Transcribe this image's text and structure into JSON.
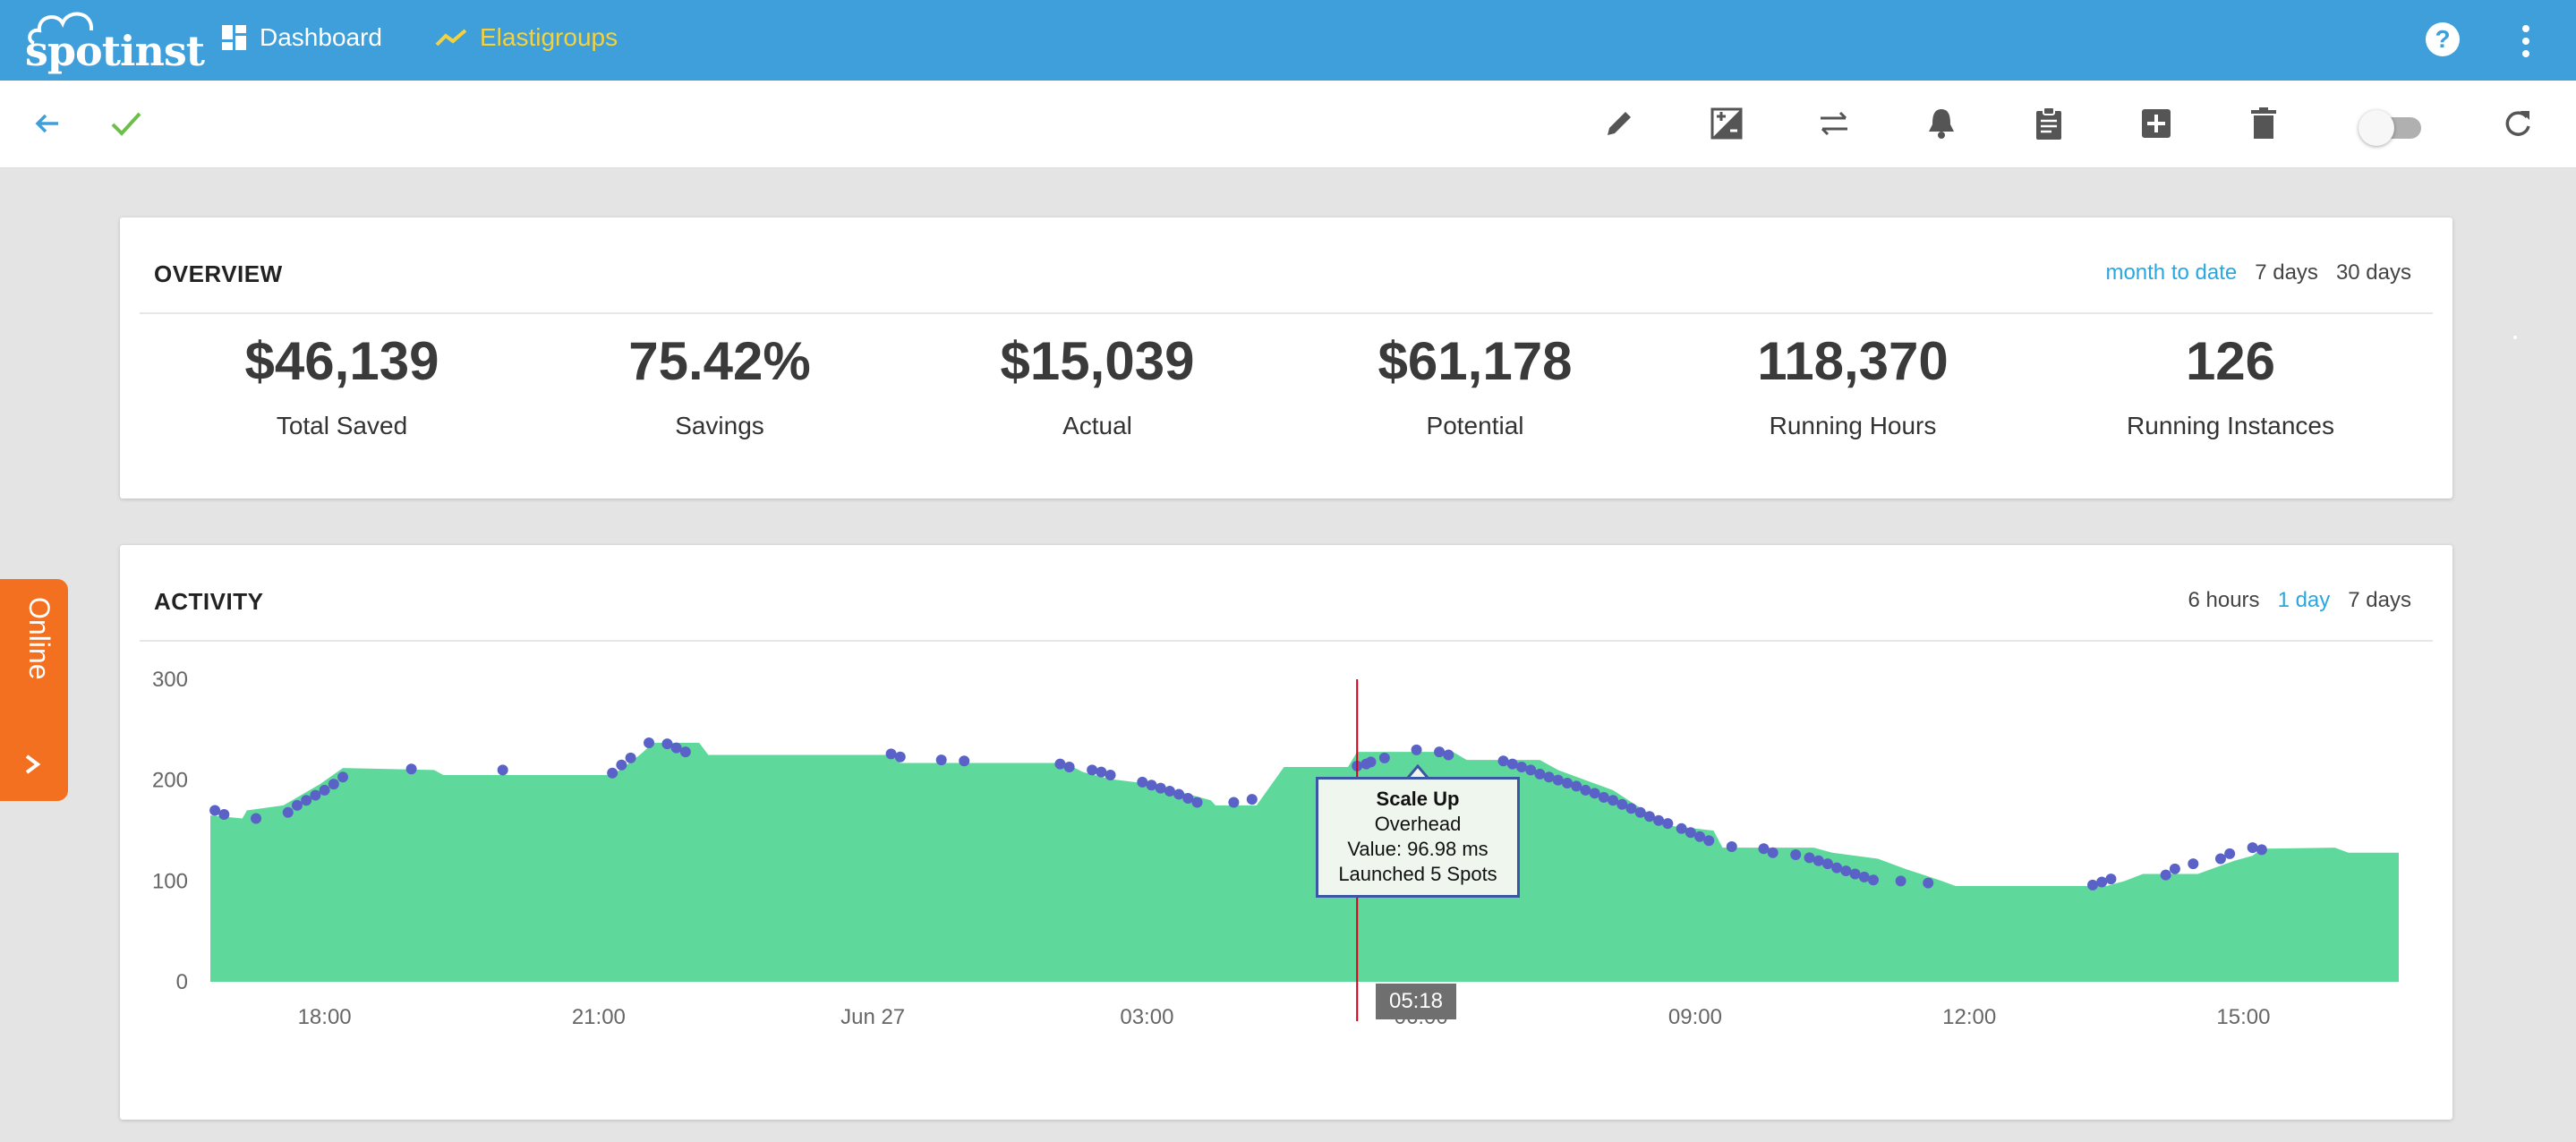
{
  "topbar": {
    "logo_text": "spotinst",
    "nav": [
      {
        "label": "Dashboard",
        "icon": "dashboard-grid-icon",
        "active": false
      },
      {
        "label": "Elastigroups",
        "icon": "trending-line-icon",
        "active": true
      }
    ],
    "help_label": "?"
  },
  "toolbar": {
    "icons": [
      "back-arrow-icon",
      "check-icon",
      "edit-pencil-icon",
      "image-plus-minus-icon",
      "swap-arrows-icon",
      "bell-icon",
      "clipboard-icon",
      "plus-box-icon",
      "trash-icon",
      "toggle-switch",
      "refresh-icon"
    ],
    "toggle_on": false
  },
  "overview": {
    "title": "OVERVIEW",
    "ranges": [
      {
        "label": "month to date",
        "selected": true
      },
      {
        "label": "7 days",
        "selected": false
      },
      {
        "label": "30 days",
        "selected": false
      }
    ],
    "stats": [
      {
        "value": "$46,139",
        "label": "Total Saved"
      },
      {
        "value": "75.42%",
        "label": "Savings"
      },
      {
        "value": "$15,039",
        "label": "Actual"
      },
      {
        "value": "$61,178",
        "label": "Potential"
      },
      {
        "value": "118,370",
        "label": "Running Hours"
      },
      {
        "value": "126",
        "label": "Running Instances"
      }
    ]
  },
  "activity": {
    "title": "ACTIVITY",
    "ranges": [
      {
        "label": "6 hours",
        "selected": false
      },
      {
        "label": "1 day",
        "selected": true
      },
      {
        "label": "7 days",
        "selected": false
      }
    ],
    "tooltip": {
      "title": "Scale Up",
      "line1": "Overhead",
      "line2": "Value: 96.98 ms",
      "line3": "Launched 5 Spots"
    },
    "cursor_time": "05:18"
  },
  "online_tab": {
    "label": "Online"
  },
  "colors": {
    "topbar": "#3e9fdb",
    "nav_active": "#f6d23a",
    "area_fill": "#5fd99b",
    "markers": "#5a62c8",
    "cursor_line": "#d0021b",
    "link_selected": "#29a7de",
    "online_tab": "#f37021"
  },
  "chart_data": {
    "type": "area",
    "ylim": [
      0,
      300
    ],
    "yticks": [
      "0",
      "100",
      "200",
      "300"
    ],
    "xlim": [
      16.75,
      40.7
    ],
    "xticks": [
      {
        "x": 18,
        "label": "18:00"
      },
      {
        "x": 21,
        "label": "21:00"
      },
      {
        "x": 24,
        "label": "Jun 27"
      },
      {
        "x": 27,
        "label": "03:00"
      },
      {
        "x": 30,
        "label": "06:00"
      },
      {
        "x": 33,
        "label": "09:00"
      },
      {
        "x": 36,
        "label": "12:00"
      },
      {
        "x": 39,
        "label": "15:00"
      }
    ],
    "series": [
      {
        "name": "instances",
        "points": [
          [
            16.75,
            165
          ],
          [
            17.1,
            162
          ],
          [
            17.15,
            170
          ],
          [
            17.55,
            175
          ],
          [
            17.95,
            196
          ],
          [
            18.2,
            212
          ],
          [
            19.2,
            210
          ],
          [
            19.3,
            205
          ],
          [
            21.15,
            205
          ],
          [
            21.35,
            218
          ],
          [
            21.45,
            225
          ],
          [
            21.6,
            237
          ],
          [
            22.1,
            237
          ],
          [
            22.2,
            225
          ],
          [
            24.2,
            225
          ],
          [
            24.3,
            217
          ],
          [
            26.1,
            217
          ],
          [
            26.3,
            208
          ],
          [
            26.6,
            201
          ],
          [
            27.05,
            196
          ],
          [
            27.3,
            190
          ],
          [
            27.7,
            180
          ],
          [
            27.75,
            175
          ],
          [
            28.2,
            175
          ],
          [
            28.5,
            213
          ],
          [
            29.2,
            213
          ],
          [
            29.3,
            228
          ],
          [
            30.35,
            228
          ],
          [
            30.5,
            220
          ],
          [
            31.3,
            220
          ],
          [
            31.5,
            210
          ],
          [
            32.1,
            190
          ],
          [
            32.7,
            155
          ],
          [
            33.2,
            150
          ],
          [
            33.3,
            133
          ],
          [
            34.3,
            133
          ],
          [
            34.5,
            128
          ],
          [
            35.0,
            122
          ],
          [
            35.3,
            112
          ],
          [
            35.7,
            100
          ],
          [
            35.85,
            95
          ],
          [
            37.5,
            95
          ],
          [
            37.7,
            100
          ],
          [
            37.9,
            107
          ],
          [
            38.5,
            107
          ],
          [
            38.9,
            120
          ],
          [
            39.1,
            125
          ],
          [
            39.2,
            132
          ],
          [
            40.0,
            133
          ],
          [
            40.15,
            128
          ],
          [
            40.7,
            128
          ]
        ]
      },
      {
        "name": "events",
        "type": "scatter",
        "points": [
          [
            16.8,
            170
          ],
          [
            16.9,
            166
          ],
          [
            17.25,
            162
          ],
          [
            17.6,
            168
          ],
          [
            17.7,
            175
          ],
          [
            17.8,
            180
          ],
          [
            17.9,
            185
          ],
          [
            18.0,
            190
          ],
          [
            18.1,
            196
          ],
          [
            18.2,
            203
          ],
          [
            18.95,
            211
          ],
          [
            19.95,
            210
          ],
          [
            21.15,
            207
          ],
          [
            21.25,
            215
          ],
          [
            21.35,
            222
          ],
          [
            21.55,
            237
          ],
          [
            21.75,
            236
          ],
          [
            21.85,
            232
          ],
          [
            21.95,
            228
          ],
          [
            24.2,
            226
          ],
          [
            24.3,
            223
          ],
          [
            24.75,
            220
          ],
          [
            25.0,
            219
          ],
          [
            26.05,
            216
          ],
          [
            26.15,
            213
          ],
          [
            26.4,
            210
          ],
          [
            26.5,
            208
          ],
          [
            26.6,
            205
          ],
          [
            26.95,
            198
          ],
          [
            27.05,
            195
          ],
          [
            27.15,
            192
          ],
          [
            27.25,
            189
          ],
          [
            27.35,
            186
          ],
          [
            27.45,
            182
          ],
          [
            27.55,
            178
          ],
          [
            27.95,
            178
          ],
          [
            28.15,
            181
          ],
          [
            29.3,
            214
          ],
          [
            29.4,
            216
          ],
          [
            29.45,
            218
          ],
          [
            29.6,
            222
          ],
          [
            29.95,
            230
          ],
          [
            30.2,
            228
          ],
          [
            30.3,
            225
          ],
          [
            30.9,
            219
          ],
          [
            31.0,
            216
          ],
          [
            31.1,
            213
          ],
          [
            31.2,
            210
          ],
          [
            31.3,
            206
          ],
          [
            31.4,
            203
          ],
          [
            31.5,
            200
          ],
          [
            31.6,
            197
          ],
          [
            31.7,
            194
          ],
          [
            31.8,
            190
          ],
          [
            31.9,
            187
          ],
          [
            32.0,
            183
          ],
          [
            32.1,
            180
          ],
          [
            32.2,
            176
          ],
          [
            32.3,
            172
          ],
          [
            32.4,
            168
          ],
          [
            32.5,
            164
          ],
          [
            32.6,
            160
          ],
          [
            32.7,
            157
          ],
          [
            32.85,
            152
          ],
          [
            32.95,
            148
          ],
          [
            33.05,
            144
          ],
          [
            33.15,
            140
          ],
          [
            33.4,
            134
          ],
          [
            33.75,
            132
          ],
          [
            33.85,
            128
          ],
          [
            34.1,
            126
          ],
          [
            34.25,
            123
          ],
          [
            34.35,
            120
          ],
          [
            34.45,
            117
          ],
          [
            34.55,
            113
          ],
          [
            34.65,
            110
          ],
          [
            34.75,
            107
          ],
          [
            34.85,
            104
          ],
          [
            34.95,
            101
          ],
          [
            35.25,
            100
          ],
          [
            35.55,
            98
          ],
          [
            37.35,
            96
          ],
          [
            37.45,
            99
          ],
          [
            37.55,
            102
          ],
          [
            38.15,
            106
          ],
          [
            38.25,
            112
          ],
          [
            38.45,
            117
          ],
          [
            38.75,
            122
          ],
          [
            38.85,
            127
          ],
          [
            39.1,
            133
          ],
          [
            39.2,
            131
          ]
        ]
      }
    ],
    "cursor": {
      "x": 29.3,
      "label": "05:18"
    }
  }
}
